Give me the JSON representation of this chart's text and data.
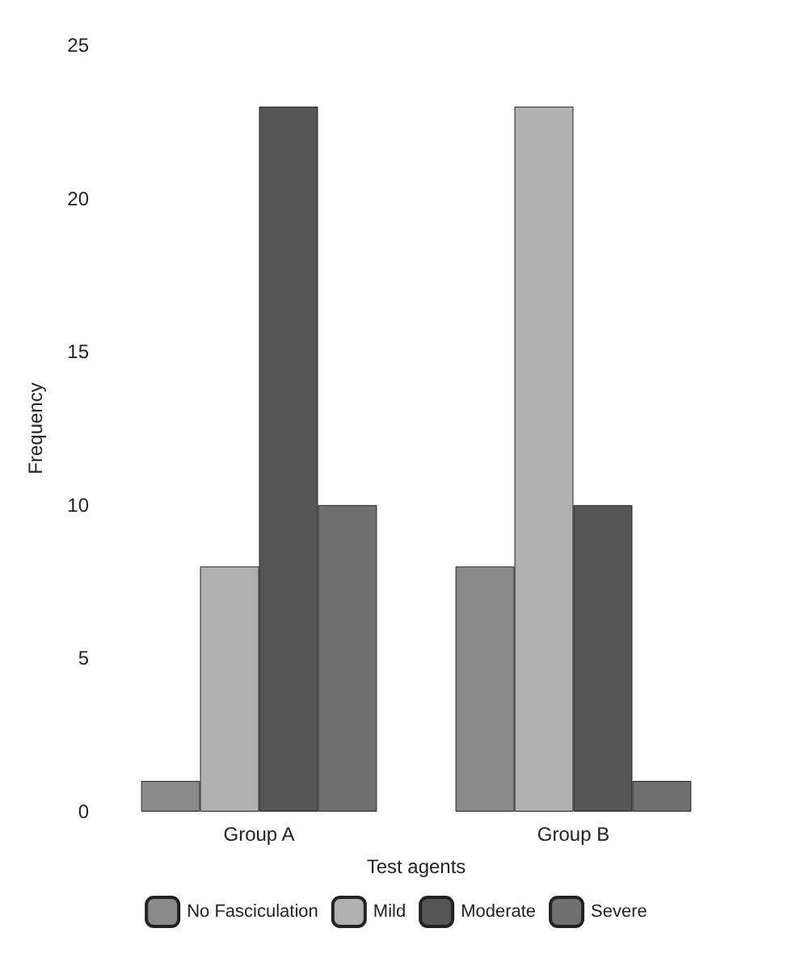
{
  "chart_data": {
    "type": "bar",
    "xlabel": "Test agents",
    "ylabel": "Frequency",
    "categories": [
      "Group A",
      "Group B"
    ],
    "series": [
      {
        "name": "No Fasciculation",
        "color": "#8a8a8a",
        "values": [
          1,
          8
        ]
      },
      {
        "name": "Mild",
        "color": "#b0b0b0",
        "values": [
          8,
          23
        ]
      },
      {
        "name": "Moderate",
        "color": "#555555",
        "values": [
          23,
          10
        ]
      },
      {
        "name": "Severe",
        "color": "#707070",
        "values": [
          10,
          1
        ]
      }
    ],
    "ylim": [
      0,
      25
    ],
    "yticks": [
      0,
      5,
      10,
      15,
      20,
      25
    ],
    "grid": false,
    "legend": "bottom"
  }
}
